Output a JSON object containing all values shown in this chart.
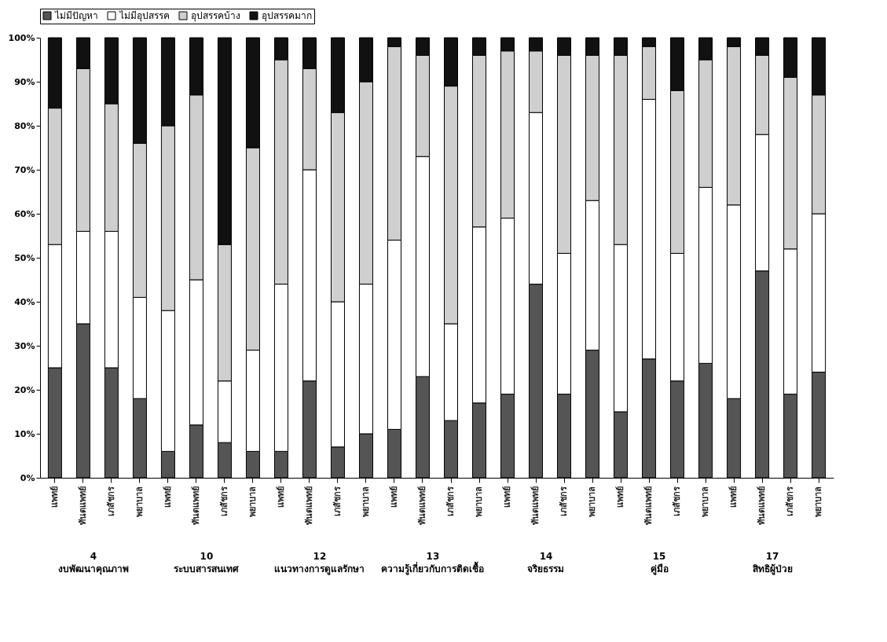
{
  "chart_data": {
    "type": "bar",
    "stacked": true,
    "legend": "top",
    "grid": false,
    "categories": [
      "แพทย์",
      "ทันตแพทย์",
      "เภสัชกร",
      "พยาบาล",
      "แพทย์",
      "ทันตแพทย์",
      "เภสัชกร",
      "พยาบาล",
      "แพทย์",
      "ทันตแพทย์",
      "เภสัชกร",
      "พยาบาล",
      "แพทย์",
      "ทันตแพทย์",
      "เภสัชกร",
      "พยาบาล",
      "แพทย์",
      "ทันตแพทย์",
      "เภสัชกร",
      "พยาบาล",
      "แพทย์",
      "ทันตแพทย์",
      "เภสัชกร",
      "พยาบาล",
      "แพทย์",
      "ทันตแพทย์",
      "เภสัชกร",
      "พยาบาล"
    ],
    "series": [
      {
        "name": "ไม่มีปัญหา",
        "color": "#555555",
        "values": [
          25,
          35,
          25,
          18,
          6,
          12,
          8,
          6,
          6,
          22,
          7,
          10,
          11,
          23,
          13,
          17,
          19,
          44,
          19,
          29,
          15,
          27,
          22,
          26,
          18,
          47,
          19,
          24
        ]
      },
      {
        "name": "ไม่มีอุปสรรค",
        "color": "#ffffff",
        "values": [
          28,
          21,
          31,
          23,
          32,
          33,
          14,
          23,
          38,
          48,
          33,
          34,
          43,
          50,
          22,
          40,
          40,
          39,
          32,
          34,
          38,
          59,
          29,
          40,
          44,
          31,
          33,
          36
        ]
      },
      {
        "name": "อุปสรรคบ้าง",
        "color": "#cfcfcf",
        "values": [
          31,
          37,
          29,
          35,
          42,
          42,
          31,
          46,
          51,
          23,
          43,
          46,
          44,
          23,
          54,
          39,
          38,
          14,
          45,
          33,
          43,
          12,
          37,
          29,
          36,
          18,
          39,
          27
        ]
      },
      {
        "name": "อุปสรรคมาก",
        "color": "#111111",
        "values": [
          16,
          7,
          15,
          24,
          20,
          13,
          47,
          25,
          5,
          7,
          17,
          10,
          2,
          4,
          11,
          4,
          3,
          3,
          4,
          4,
          4,
          2,
          12,
          5,
          2,
          4,
          9,
          13
        ]
      }
    ],
    "ylim": [
      0,
      100
    ],
    "yticks": [
      {
        "value": 0,
        "label": "0%"
      },
      {
        "value": 10,
        "label": "10%"
      },
      {
        "value": 20,
        "label": "20%"
      },
      {
        "value": 30,
        "label": "30%"
      },
      {
        "value": 40,
        "label": "40%"
      },
      {
        "value": 50,
        "label": "50%"
      },
      {
        "value": 60,
        "label": "60%"
      },
      {
        "value": 70,
        "label": "70%"
      },
      {
        "value": 80,
        "label": "80%"
      },
      {
        "value": 90,
        "label": "90%"
      },
      {
        "value": 100,
        "label": "100%"
      }
    ],
    "annotations": [
      "4 งบพัฒนาคุณภาพ",
      "10 ระบบสารสนเทศ",
      "12 แนวทางการดูแลรักษา",
      "13 ความรู้เกี่ยวกับการติดเชื้อ",
      "14 จริยธรรม",
      "15 คู่มือ",
      "17 สิทธิผู้ป่วย"
    ]
  }
}
